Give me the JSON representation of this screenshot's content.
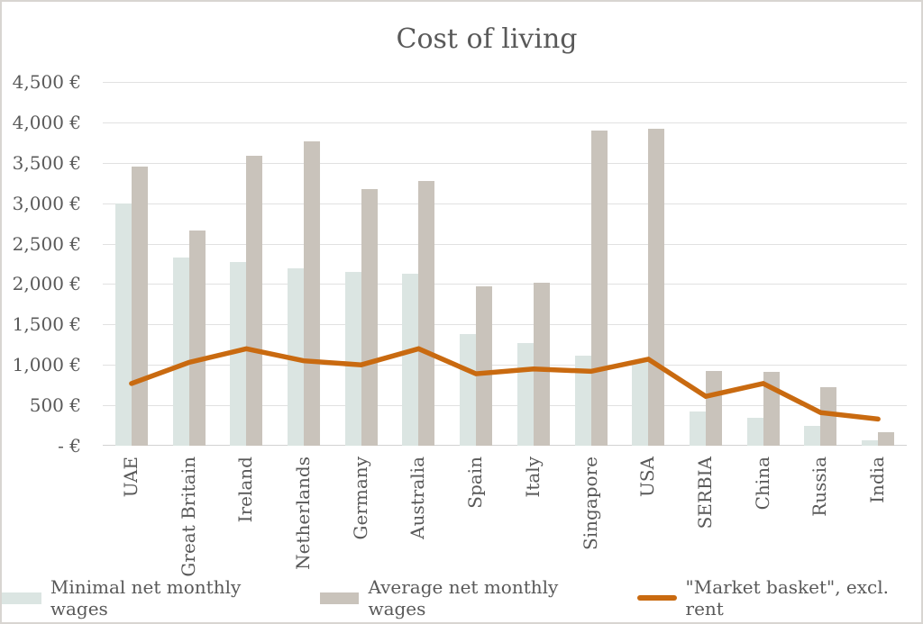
{
  "title": "Cost of living",
  "legend": {
    "minimal_label": "Minimal net monthly wages",
    "average_label": "Average net monthly wages",
    "basket_label": "\"Market basket\", excl. rent"
  },
  "colors": {
    "minimal_bar": "#dbe5e2",
    "average_bar": "#c9c3bb",
    "basket_line": "#c96a10",
    "text": "#595959",
    "gridline": "#e1e1e1"
  },
  "chart_data": {
    "type": "bar",
    "title": "Cost of living",
    "categories": [
      "UAE",
      "Great Britain",
      "Ireland",
      "Netherlands",
      "Germany",
      "Australia",
      "Spain",
      "Italy",
      "Singapore",
      "USA",
      "SERBIA",
      "China",
      "Russia",
      "India"
    ],
    "series": [
      {
        "name": "Minimal net monthly wages",
        "type": "bar",
        "color": "#dbe5e2",
        "values": [
          3000,
          2330,
          2270,
          2190,
          2150,
          2130,
          1380,
          1270,
          1110,
          1050,
          420,
          340,
          250,
          70
        ]
      },
      {
        "name": "Average net monthly wages",
        "type": "bar",
        "color": "#c9c3bb",
        "values": [
          3450,
          2660,
          3590,
          3770,
          3170,
          3270,
          1970,
          2020,
          3900,
          3920,
          930,
          910,
          720,
          170
        ]
      },
      {
        "name": "\"Market basket\", excl. rent",
        "type": "line",
        "color": "#c96a10",
        "values": [
          770,
          1030,
          1200,
          1050,
          1000,
          1200,
          890,
          950,
          920,
          1070,
          610,
          770,
          410,
          330
        ]
      }
    ],
    "xlabel": "",
    "ylabel": "",
    "ylim": [
      0,
      4500
    ],
    "y_tick_step": 500,
    "y_tick_labels": [
      "- €",
      "500 €",
      "1,000 €",
      "1,500 €",
      "2,000 €",
      "2,500 €",
      "3,000 €",
      "3,500 €",
      "4,000 €",
      "4,500 €"
    ],
    "grid": true,
    "legend_position": "bottom"
  }
}
